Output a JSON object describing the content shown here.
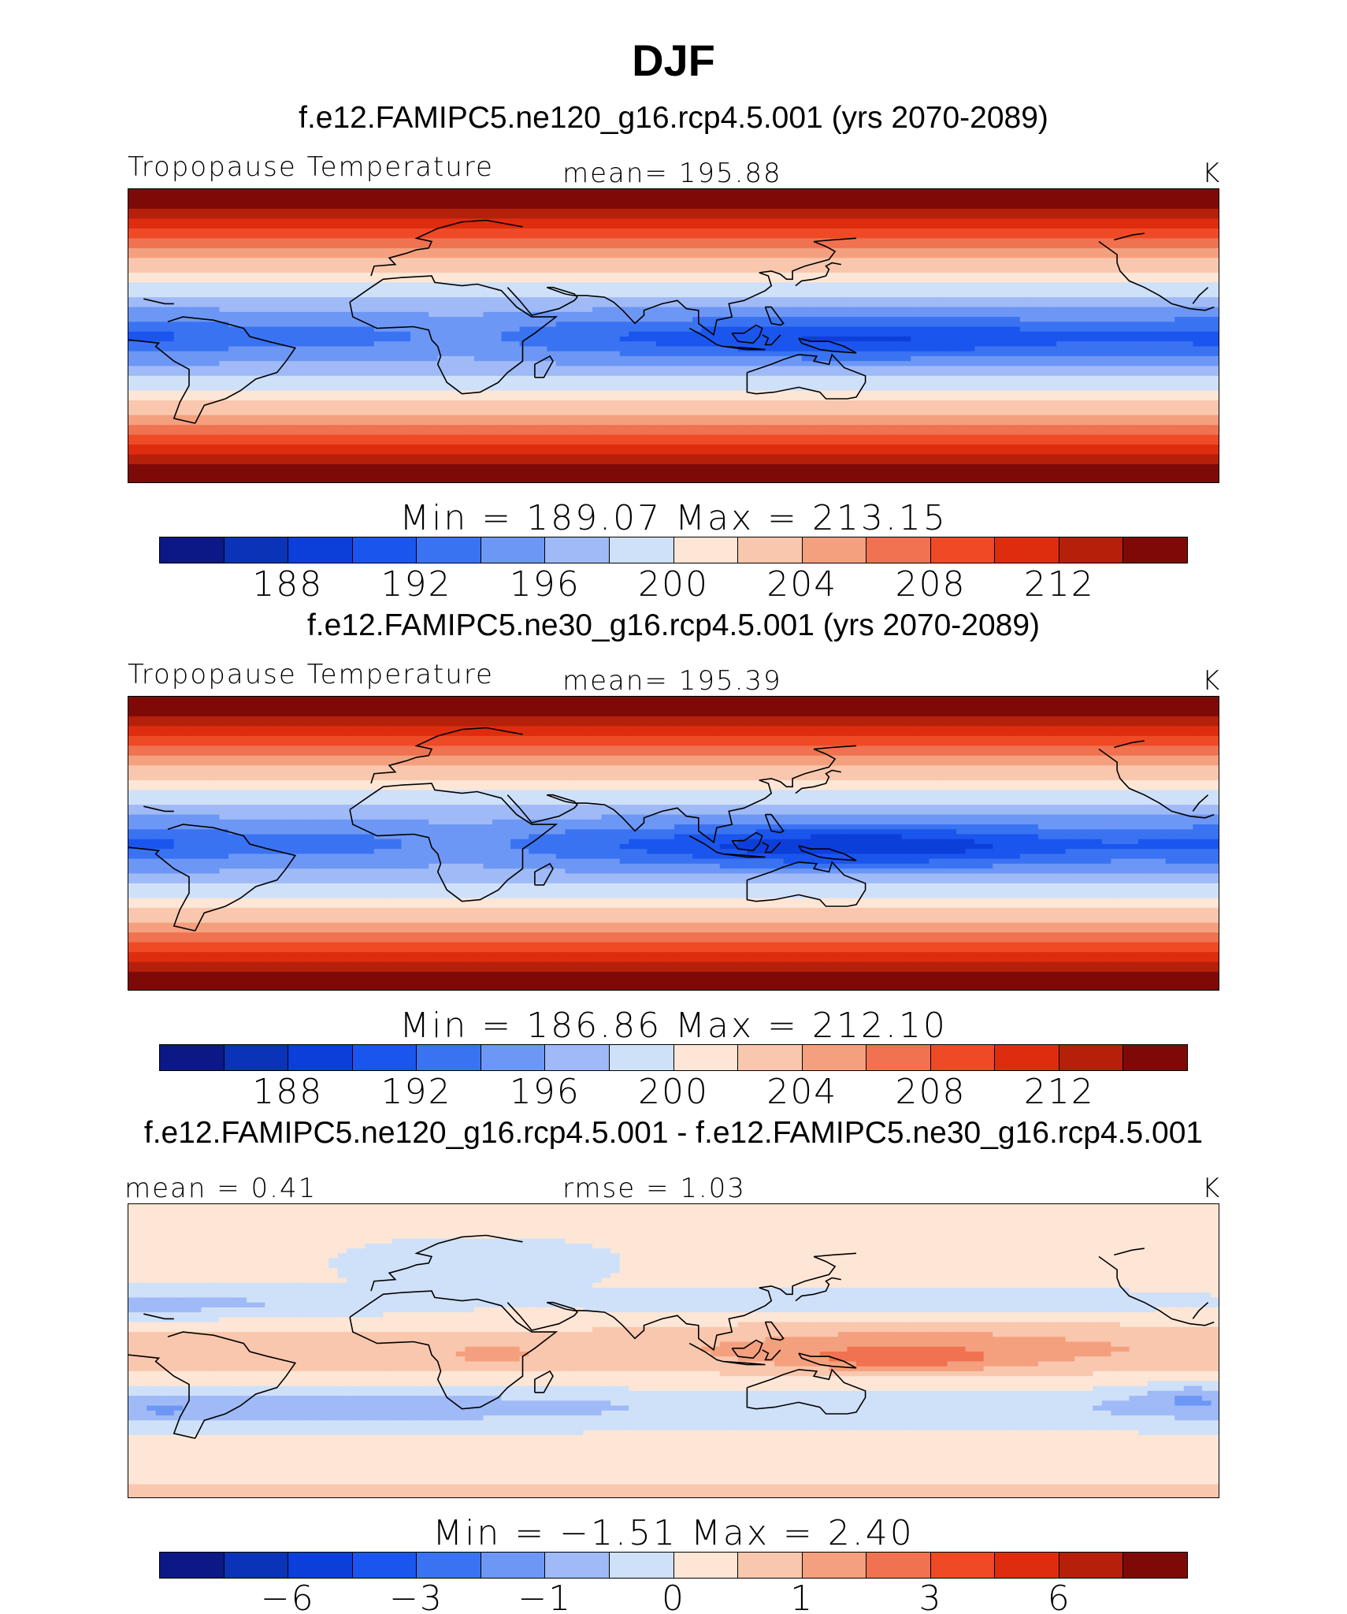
{
  "figure": {
    "title": "DJF"
  },
  "colormap": {
    "colors": [
      "#0b1886",
      "#0a33b8",
      "#0c3fd9",
      "#1a55ee",
      "#3a73f2",
      "#6d97f5",
      "#9fbaf6",
      "#cfe0f9",
      "#fde6d6",
      "#f9c7ae",
      "#f4a07e",
      "#f07250",
      "#ef4a26",
      "#de2d0e",
      "#b5200b",
      "#7e0a08"
    ]
  },
  "panels": [
    {
      "id": "ne120",
      "run_title": "f.e12.FAMIPC5.ne120_g16.rcp4.5.001 (yrs 2070-2089)",
      "left_label": "Tropopause Temperature",
      "center_label": "mean=  195.88",
      "units": "K",
      "minmax_label": "Min  =  189.07  Max  =  213.15",
      "colorbar_ticks": [
        "188",
        "192",
        "196",
        "200",
        "204",
        "208",
        "212"
      ],
      "field": {
        "type": "temperature",
        "tropical_min": 189.07,
        "polar_max": 213.15,
        "mean": 195.88
      }
    },
    {
      "id": "ne30",
      "run_title": "f.e12.FAMIPC5.ne30_g16.rcp4.5.001 (yrs 2070-2089)",
      "left_label": "Tropopause Temperature",
      "center_label": "mean=  195.39",
      "units": "K",
      "minmax_label": "Min  =  186.86  Max  =  212.10",
      "colorbar_ticks": [
        "188",
        "192",
        "196",
        "200",
        "204",
        "208",
        "212"
      ],
      "field": {
        "type": "temperature",
        "tropical_min": 186.86,
        "polar_max": 212.1,
        "mean": 195.39
      }
    },
    {
      "id": "diff",
      "run_title": "f.e12.FAMIPC5.ne120_g16.rcp4.5.001 - f.e12.FAMIPC5.ne30_g16.rcp4.5.001",
      "left_label": "mean =    0.41",
      "center_label": "rmse =    1.03",
      "units": "K",
      "minmax_label": "Min  =   −1.51  Max  =    2.40",
      "colorbar_ticks": [
        "−6",
        "−3",
        "−1",
        "0",
        "1",
        "3",
        "6"
      ],
      "field": {
        "type": "difference",
        "min": -1.51,
        "max": 2.4,
        "mean": 0.41,
        "rmse": 1.03
      }
    }
  ]
}
